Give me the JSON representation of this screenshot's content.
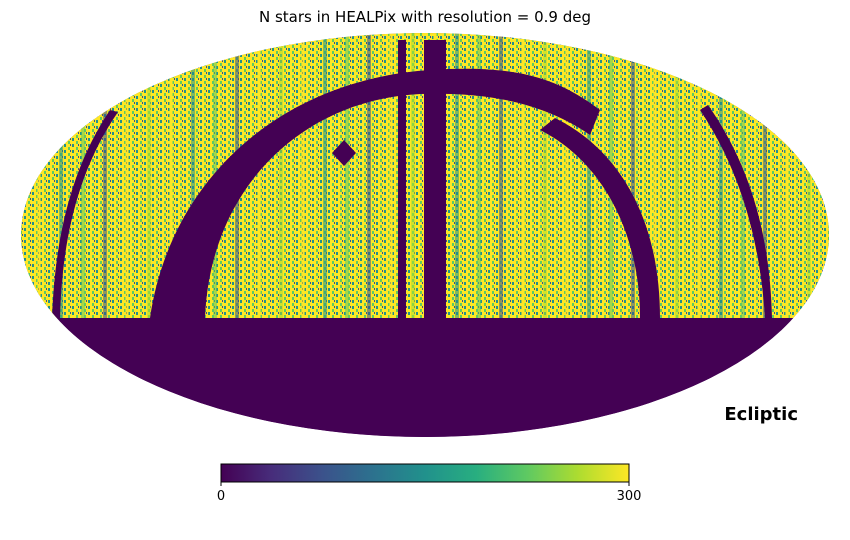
{
  "chart_data": {
    "type": "heatmap",
    "projection": "mollweide",
    "title": "N stars in HEALPix with resolution = 0.9 deg",
    "coord_label": "Ecliptic",
    "colormap": "viridis",
    "colorbar": {
      "min": 0,
      "max": 300,
      "tick_labels": [
        "0",
        "300"
      ],
      "orientation": "horizontal",
      "placement": "bottom"
    },
    "empty_region_color": "#440154",
    "grid": false,
    "legend": "none"
  }
}
